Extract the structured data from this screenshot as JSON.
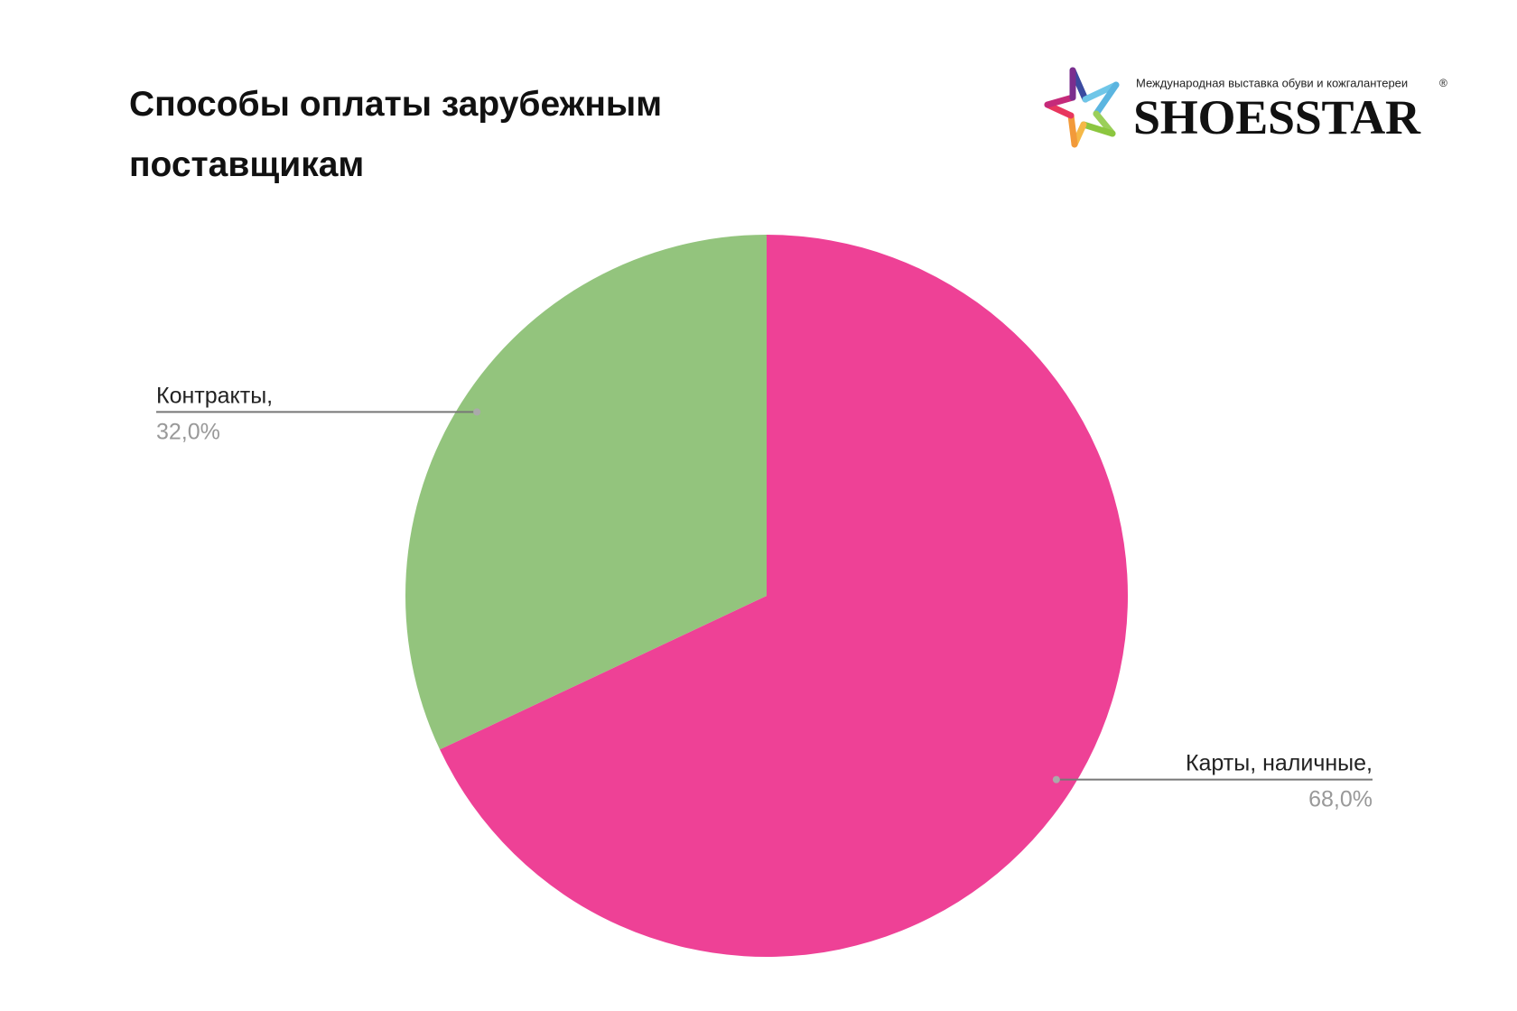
{
  "logo": {
    "tagline": "Международная выставка обуви и кожгалантереи",
    "brand": "SHOESSTAR",
    "mark": "®"
  },
  "chart_data": {
    "type": "pie",
    "title": "Способы оплаты зарубежным поставщикам",
    "categories": [
      "Карты, наличные,",
      "Контракты,"
    ],
    "values": [
      68,
      32
    ],
    "value_labels": [
      "68,0%",
      "32,0%"
    ],
    "colors": [
      "#ee4196",
      "#93c47d"
    ]
  }
}
